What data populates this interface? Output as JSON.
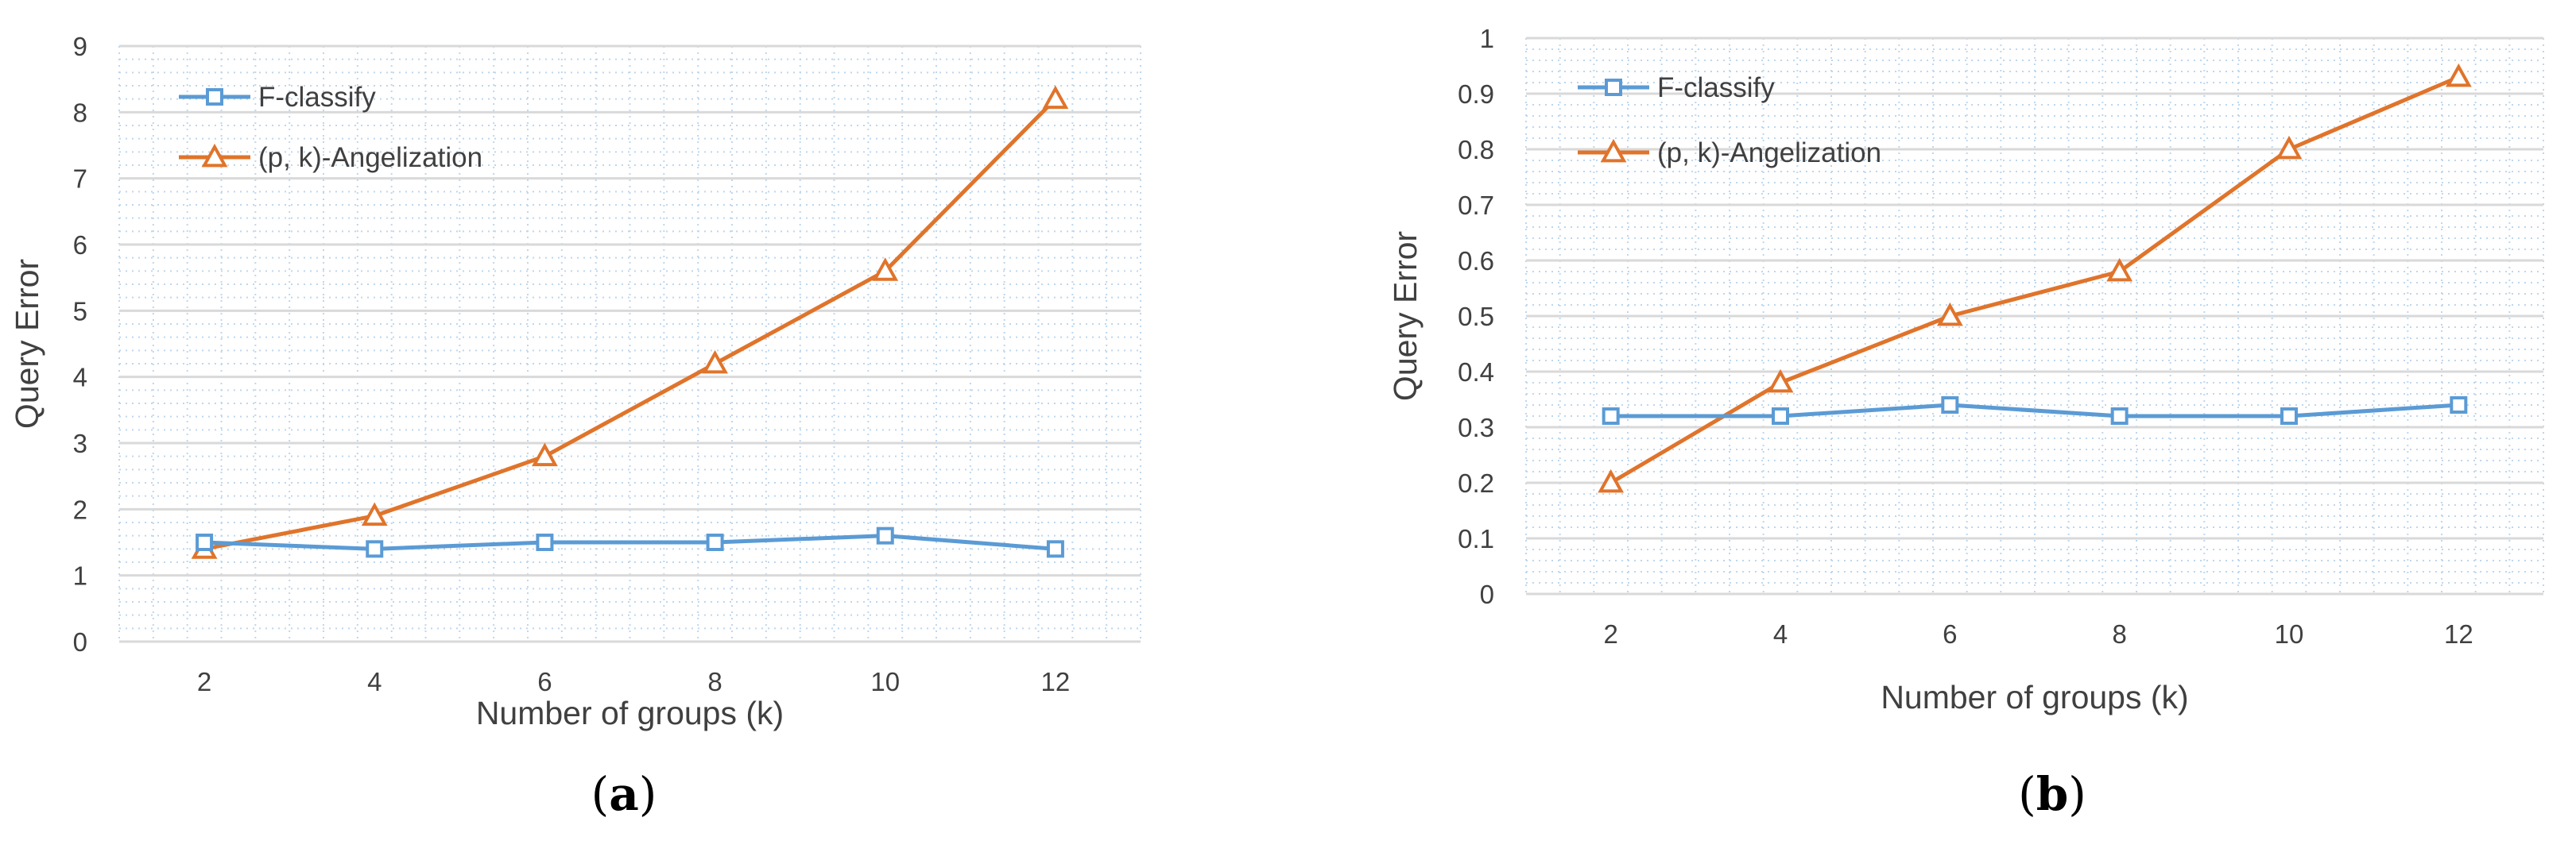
{
  "colors": {
    "f_classify": "#5b9bd5",
    "angelization": "#e0742b",
    "grid_major": "#d9d9d9",
    "grid_minor": "#bdd7ee"
  },
  "chart_data": [
    {
      "type": "line",
      "panel_label": "a",
      "x": [
        2,
        4,
        6,
        8,
        10,
        12
      ],
      "series": [
        {
          "name": "F-classify",
          "marker": "square",
          "values": [
            1.5,
            1.4,
            1.5,
            1.5,
            1.6,
            1.4
          ]
        },
        {
          "name": "(p, k)-Angelization",
          "marker": "triangle",
          "values": [
            1.4,
            1.9,
            2.8,
            4.2,
            5.6,
            8.2
          ]
        }
      ],
      "xlabel": "Number of groups (k)",
      "ylabel": "Query Error",
      "ylim": [
        0,
        9
      ],
      "yticks": [
        0,
        1,
        2,
        3,
        4,
        5,
        6,
        7,
        8,
        9
      ],
      "ytick_labels": [
        "0",
        "1",
        "2",
        "3",
        "4",
        "5",
        "6",
        "7",
        "8",
        "9"
      ],
      "xtick_labels": [
        "2",
        "4",
        "6",
        "8",
        "10",
        "12"
      ],
      "grid": true,
      "legend_position": "top-left"
    },
    {
      "type": "line",
      "panel_label": "b",
      "x": [
        2,
        4,
        6,
        8,
        10,
        12
      ],
      "series": [
        {
          "name": "F-classify",
          "marker": "square",
          "values": [
            0.32,
            0.32,
            0.34,
            0.32,
            0.32,
            0.34
          ]
        },
        {
          "name": "(p, k)-Angelization",
          "marker": "triangle",
          "values": [
            0.2,
            0.38,
            0.5,
            0.58,
            0.8,
            0.93
          ]
        }
      ],
      "xlabel": "Number of groups (k)",
      "ylabel": "Query Error",
      "ylim": [
        0,
        1
      ],
      "yticks": [
        0,
        0.1,
        0.2,
        0.3,
        0.4,
        0.5,
        0.6,
        0.7,
        0.8,
        0.9,
        1
      ],
      "ytick_labels": [
        "0",
        "0.1",
        "0.2",
        "0.3",
        "0.4",
        "0.5",
        "0.6",
        "0.7",
        "0.8",
        "0.9",
        "1"
      ],
      "xtick_labels": [
        "2",
        "4",
        "6",
        "8",
        "10",
        "12"
      ],
      "grid": true,
      "legend_position": "top-left"
    }
  ]
}
